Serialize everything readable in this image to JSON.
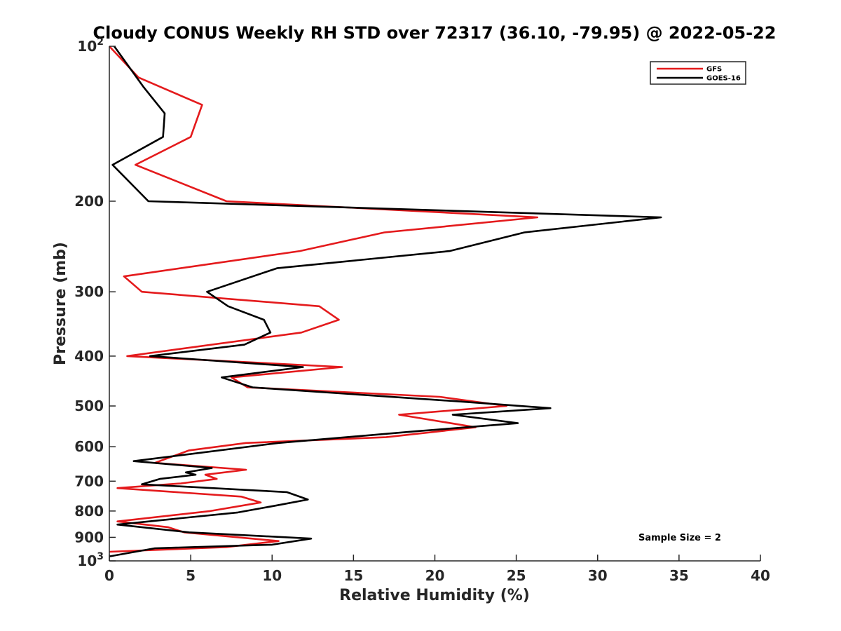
{
  "chart_data": {
    "type": "line",
    "title": "Cloudy CONUS Weekly RH STD over 72317 (36.10, -79.95) @ 2022-05-22",
    "xlabel": "Relative Humidity (%)",
    "ylabel": "Pressure (mb)",
    "xlim": [
      0,
      40
    ],
    "ylim": [
      100,
      1000
    ],
    "y_scale": "log",
    "y_reversed": true,
    "grid": false,
    "legend_position": "top-right",
    "x_ticks": [
      0,
      5,
      10,
      15,
      20,
      25,
      30,
      35,
      40
    ],
    "x_tick_labels": [
      "0",
      "5",
      "10",
      "15",
      "20",
      "25",
      "30",
      "35",
      "40"
    ],
    "y_ticks": [
      100,
      200,
      300,
      400,
      500,
      600,
      700,
      800,
      900,
      1000
    ],
    "y_tick_labels": [
      {
        "base": "10",
        "exp": "2"
      },
      {
        "base": "200",
        "exp": ""
      },
      {
        "base": "300",
        "exp": ""
      },
      {
        "base": "400",
        "exp": ""
      },
      {
        "base": "500",
        "exp": ""
      },
      {
        "base": "600",
        "exp": ""
      },
      {
        "base": "700",
        "exp": ""
      },
      {
        "base": "800",
        "exp": ""
      },
      {
        "base": "900",
        "exp": ""
      },
      {
        "base": "10",
        "exp": "3"
      }
    ],
    "annotation": "Sample Size = 2",
    "series": [
      {
        "name": "GFS",
        "color": "#e41a1c",
        "points": [
          [
            0.0,
            100
          ],
          [
            1.8,
            115
          ],
          [
            5.7,
            130
          ],
          [
            5.0,
            150
          ],
          [
            1.6,
            170
          ],
          [
            7.2,
            200
          ],
          [
            26.3,
            215
          ],
          [
            16.9,
            230
          ],
          [
            11.7,
            250
          ],
          [
            0.9,
            280
          ],
          [
            2.0,
            300
          ],
          [
            12.9,
            320
          ],
          [
            14.1,
            340
          ],
          [
            11.8,
            360
          ],
          [
            1.1,
            400
          ],
          [
            14.3,
            420
          ],
          [
            7.5,
            440
          ],
          [
            8.5,
            460
          ],
          [
            20.3,
            480
          ],
          [
            24.4,
            500
          ],
          [
            17.8,
            520
          ],
          [
            22.5,
            550
          ],
          [
            17.0,
            575
          ],
          [
            8.4,
            590
          ],
          [
            4.9,
            610
          ],
          [
            2.8,
            645
          ],
          [
            8.4,
            665
          ],
          [
            5.9,
            680
          ],
          [
            6.6,
            693
          ],
          [
            4.4,
            707
          ],
          [
            0.5,
            722
          ],
          [
            8.1,
            750
          ],
          [
            9.3,
            770
          ],
          [
            6.2,
            800
          ],
          [
            0.5,
            838
          ],
          [
            3.6,
            860
          ],
          [
            4.6,
            880
          ],
          [
            10.4,
            915
          ],
          [
            7.2,
            940
          ],
          [
            0.0,
            960
          ]
        ]
      },
      {
        "name": "GOES-16",
        "color": "#000000",
        "points": [
          [
            0.3,
            100
          ],
          [
            2.1,
            120
          ],
          [
            3.4,
            135
          ],
          [
            3.3,
            150
          ],
          [
            0.2,
            170
          ],
          [
            2.4,
            200
          ],
          [
            33.9,
            215
          ],
          [
            25.5,
            230
          ],
          [
            20.9,
            250
          ],
          [
            10.3,
            270
          ],
          [
            6.0,
            300
          ],
          [
            7.3,
            320
          ],
          [
            9.5,
            340
          ],
          [
            9.9,
            360
          ],
          [
            8.3,
            380
          ],
          [
            2.5,
            400
          ],
          [
            11.9,
            420
          ],
          [
            6.9,
            440
          ],
          [
            8.8,
            460
          ],
          [
            21.5,
            490
          ],
          [
            27.1,
            505
          ],
          [
            21.1,
            520
          ],
          [
            25.1,
            540
          ],
          [
            18.8,
            560
          ],
          [
            10.4,
            590
          ],
          [
            1.5,
            640
          ],
          [
            6.3,
            660
          ],
          [
            4.7,
            673
          ],
          [
            5.3,
            680
          ],
          [
            3.1,
            693
          ],
          [
            2.0,
            710
          ],
          [
            10.9,
            735
          ],
          [
            12.2,
            760
          ],
          [
            10.3,
            780
          ],
          [
            7.9,
            805
          ],
          [
            0.5,
            850
          ],
          [
            4.9,
            880
          ],
          [
            12.4,
            905
          ],
          [
            10.0,
            930
          ],
          [
            2.8,
            945
          ],
          [
            0.0,
            980
          ]
        ]
      }
    ]
  }
}
